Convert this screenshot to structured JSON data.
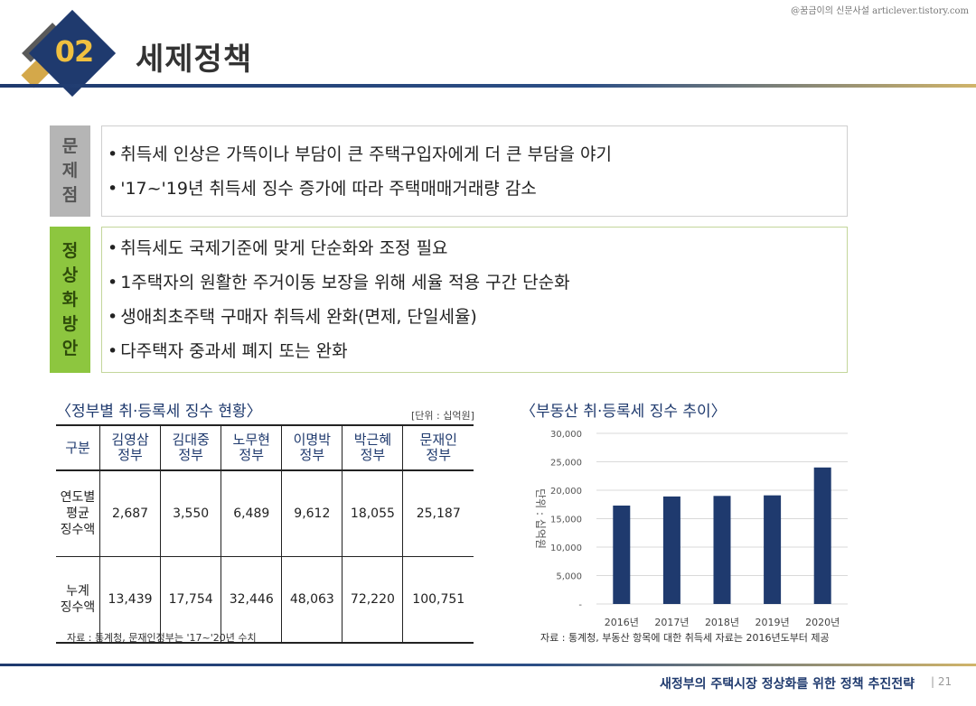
{
  "watermark": "@꿈금이의 신문사설 articlever.tistory.com",
  "header": {
    "number": "02",
    "title": "세제정책"
  },
  "problem": {
    "label_chars": [
      "문",
      "제",
      "점"
    ],
    "bullets": [
      "취득세 인상은 가뜩이나 부담이 큰 주택구입자에게 더 큰 부담을 야기",
      "'17~'19년 취득세 징수 증가에 따라 주택매매거래량 감소"
    ]
  },
  "solution": {
    "label_chars": [
      "정",
      "상",
      "화",
      "방",
      "안"
    ],
    "bullets": [
      "취득세도 국제기준에 맞게 단순화와 조정 필요",
      "1주택자의 원활한 주거이동 보장을 위해 세율 적용 구간 단순화",
      "생애최초주택 구매자 취득세 완화(면제, 단일세율)",
      "다주택자 중과세 폐지 또는 완화"
    ]
  },
  "table_section": {
    "title": "〈정부별 취·등록세 징수 현황〉",
    "unit": "[단위 : 십억원]",
    "headers": [
      "구분",
      "김영삼\n정부",
      "김대중\n정부",
      "노무현\n정부",
      "이명박\n정부",
      "박근혜\n정부",
      "문재인\n정부"
    ],
    "rows": [
      {
        "label": "연도별\n평균\n징수액",
        "values": [
          "2,687",
          "3,550",
          "6,489",
          "9,612",
          "18,055",
          "25,187"
        ]
      },
      {
        "label": "누계\n징수액",
        "values": [
          "13,439",
          "17,754",
          "32,446",
          "48,063",
          "72,220",
          "100,751"
        ]
      }
    ],
    "source": "자료 : 통계청,  문재인정부는 '17~'20년 수치"
  },
  "chart_section": {
    "title": "〈부동산 취·등록세 징수 추이〉",
    "source": "자료 : 통계청, 부동산 항목에 대한 취득세 자료는 2016년도부터 제공"
  },
  "chart_data": {
    "type": "bar",
    "categories": [
      "2016년",
      "2017년",
      "2018년",
      "2019년",
      "2020년"
    ],
    "values": [
      17300,
      18900,
      19000,
      19100,
      24000
    ],
    "ylabel": "단위 : 십억원",
    "ylim": [
      0,
      30000
    ],
    "yticks": [
      {
        "value": 0,
        "label": "-"
      },
      {
        "value": 5000,
        "label": "5,000"
      },
      {
        "value": 10000,
        "label": "10,000"
      },
      {
        "value": 15000,
        "label": "15,000"
      },
      {
        "value": 20000,
        "label": "20,000"
      },
      {
        "value": 25000,
        "label": "25,000"
      },
      {
        "value": 30000,
        "label": "30,000"
      }
    ],
    "grid": true,
    "bar_color": "#1f3a6e"
  },
  "footer": {
    "text": "새정부의 주택시장 정상화를 위한 정책 추진전략",
    "page": "| 21"
  }
}
